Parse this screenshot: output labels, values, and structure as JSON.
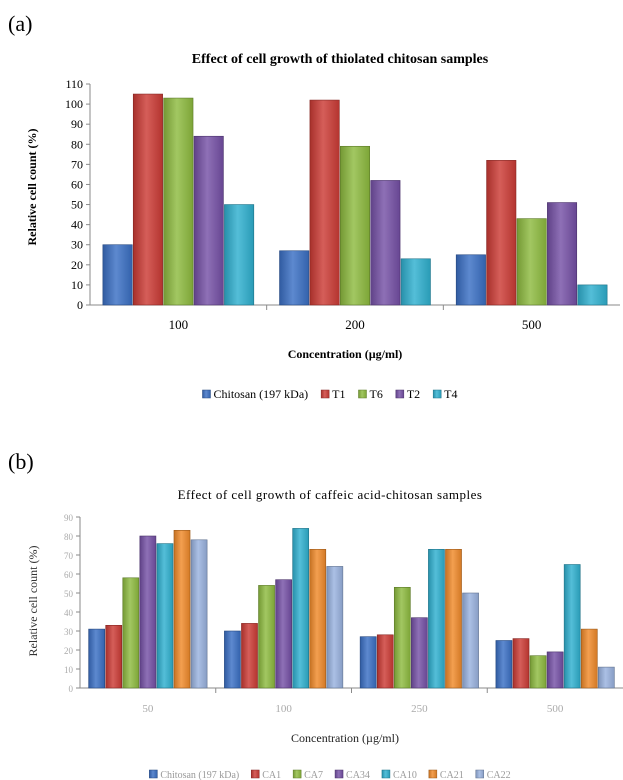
{
  "panels": [
    {
      "label": "(a)"
    },
    {
      "label": "(b)"
    }
  ],
  "chart_data": [
    {
      "type": "bar",
      "title": "Effect of cell growth of thiolated chitosan samples",
      "xlabel": "Concentration (µg/ml)",
      "ylabel": "Relative cell count (%)",
      "ylim": [
        0,
        110
      ],
      "yticks": [
        0,
        10,
        20,
        30,
        40,
        50,
        60,
        70,
        80,
        90,
        100,
        110
      ],
      "categories": [
        "100",
        "200",
        "500"
      ],
      "legend_position": "bottom",
      "grid": false,
      "series": [
        {
          "name": "Chitosan (197 kDa)",
          "color": "#3a6fc4",
          "values": [
            30,
            27,
            25
          ]
        },
        {
          "name": "T1",
          "color": "#cc3b35",
          "values": [
            105,
            102,
            72
          ]
        },
        {
          "name": "T6",
          "color": "#8ebb3f",
          "values": [
            103,
            79,
            43
          ]
        },
        {
          "name": "T2",
          "color": "#7550a6",
          "values": [
            84,
            62,
            51
          ]
        },
        {
          "name": "T4",
          "color": "#2fb0cf",
          "values": [
            50,
            23,
            10
          ]
        }
      ]
    },
    {
      "type": "bar",
      "title": "Effect of cell growth of caffeic acid-chitosan samples",
      "xlabel": "Concentration (µg/ml)",
      "ylabel": "Relative cell count (%)",
      "ylim": [
        0,
        90
      ],
      "yticks": [
        0,
        10,
        20,
        30,
        40,
        50,
        60,
        70,
        80,
        90
      ],
      "categories": [
        "50",
        "100",
        "250",
        "500"
      ],
      "legend_position": "bottom",
      "grid": false,
      "series": [
        {
          "name": "Chitosan (197 kDa)",
          "color": "#3a6fc4",
          "values": [
            31,
            30,
            27,
            25
          ]
        },
        {
          "name": "CA1",
          "color": "#cc3b35",
          "values": [
            33,
            34,
            28,
            26
          ]
        },
        {
          "name": "CA7",
          "color": "#8ebb3f",
          "values": [
            58,
            54,
            53,
            17
          ]
        },
        {
          "name": "CA34",
          "color": "#7550a6",
          "values": [
            80,
            57,
            37,
            19
          ]
        },
        {
          "name": "CA10",
          "color": "#2fb0cf",
          "values": [
            76,
            84,
            73,
            65
          ]
        },
        {
          "name": "CA21",
          "color": "#f08a2a",
          "values": [
            83,
            73,
            73,
            31
          ]
        },
        {
          "name": "CA22",
          "color": "#99b2df",
          "values": [
            78,
            64,
            50,
            11
          ]
        }
      ]
    }
  ]
}
